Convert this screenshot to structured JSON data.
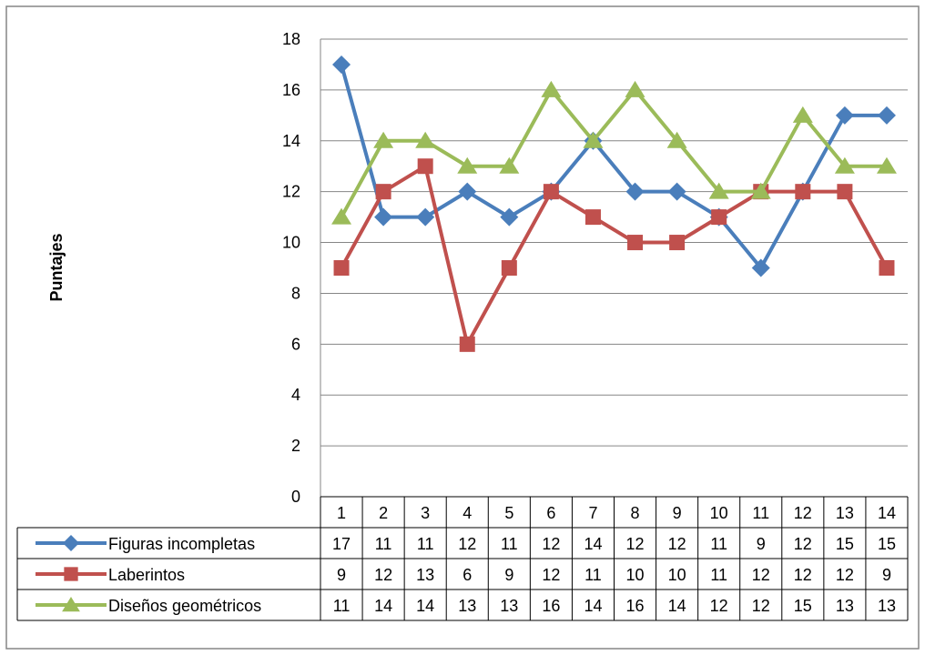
{
  "chart_data": {
    "type": "line",
    "ylabel": "Puntajes",
    "xlabel": "",
    "ylim": [
      0,
      18
    ],
    "ytick_step": 2,
    "grid": true,
    "legend": "data-table-bottom",
    "categories": [
      "1",
      "2",
      "3",
      "4",
      "5",
      "6",
      "7",
      "8",
      "9",
      "10",
      "11",
      "12",
      "13",
      "14"
    ],
    "series": [
      {
        "name": "Figuras incompletas",
        "color": "#4a7ebb",
        "marker": "diamond",
        "values": [
          17,
          11,
          11,
          12,
          11,
          12,
          14,
          12,
          12,
          11,
          9,
          12,
          15,
          15
        ]
      },
      {
        "name": "Laberintos",
        "color": "#c0504d",
        "marker": "square",
        "values": [
          9,
          12,
          13,
          6,
          9,
          12,
          11,
          10,
          10,
          11,
          12,
          12,
          12,
          9
        ]
      },
      {
        "name": "Diseños geométricos",
        "color": "#9bbb59",
        "marker": "triangle",
        "values": [
          11,
          14,
          14,
          13,
          13,
          16,
          14,
          16,
          14,
          12,
          12,
          15,
          13,
          13
        ]
      }
    ]
  }
}
